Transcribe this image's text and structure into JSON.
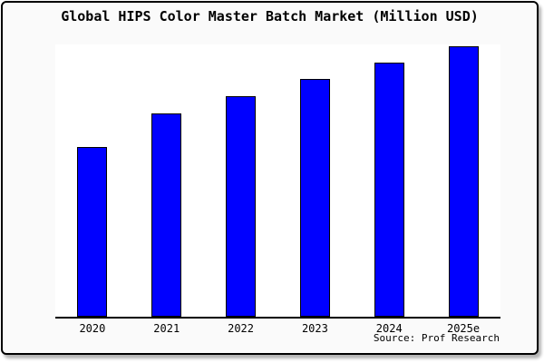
{
  "window": {
    "background": "#fafafa",
    "border_color": "#000000",
    "plot_background": "#ffffff"
  },
  "chart_data": {
    "type": "bar",
    "title": "Global HIPS Color Master Batch Market (Million USD)",
    "categories": [
      "2020",
      "2021",
      "2022",
      "2023",
      "2024",
      "2025e"
    ],
    "values": [
      187,
      224,
      243,
      262,
      280,
      298
    ],
    "note": "No y-axis scale or value labels are shown; values are relative bar heights measured from the image",
    "ylim": [
      0,
      300
    ],
    "xlabel": "",
    "ylabel": "",
    "grid": false,
    "legend": false,
    "bar_color": "#0000ff",
    "bar_border_color": "#000000",
    "axis_color": "#000000",
    "source": "Source: Prof Research"
  }
}
